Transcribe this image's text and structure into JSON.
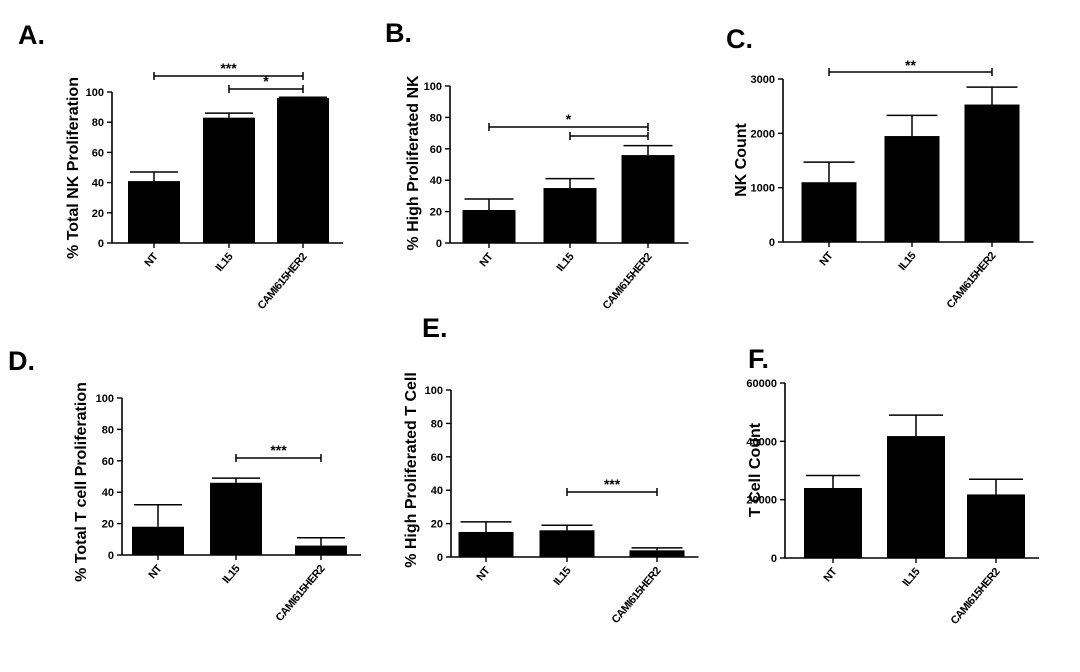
{
  "chart_data": [
    {
      "panel": "A.",
      "type": "bar",
      "categories": [
        "NT",
        "IL15",
        "CAMI615HER2"
      ],
      "values": [
        41,
        83,
        96
      ],
      "errors": [
        6,
        3,
        0.5
      ],
      "ylabel": "% Total NK Proliferation",
      "ylim": [
        0,
        100
      ],
      "yticks": [
        0,
        20,
        40,
        60,
        80,
        100
      ],
      "significance": [
        {
          "from": 0,
          "to": 2,
          "label": "***"
        },
        {
          "from": 1,
          "to": 2,
          "label": "*"
        }
      ]
    },
    {
      "panel": "B.",
      "type": "bar",
      "categories": [
        "NT",
        "IL15",
        "CAMI615HER2"
      ],
      "values": [
        21,
        35,
        56
      ],
      "errors": [
        7,
        6,
        6
      ],
      "ylabel": "% High Proliferated NK",
      "ylim": [
        0,
        100
      ],
      "yticks": [
        0,
        20,
        40,
        60,
        80,
        100
      ],
      "significance": [
        {
          "from": 0,
          "to": 2,
          "label": "*"
        },
        {
          "from": 1,
          "to": 2,
          "label": ""
        }
      ]
    },
    {
      "panel": "C.",
      "type": "bar",
      "categories": [
        "NT",
        "IL15",
        "CAMI615HER2"
      ],
      "values": [
        1100,
        1950,
        2530
      ],
      "errors": [
        370,
        380,
        320
      ],
      "ylabel": "NK Count",
      "ylim": [
        0,
        3000
      ],
      "yticks": [
        0,
        1000,
        2000,
        3000
      ],
      "significance": [
        {
          "from": 0,
          "to": 2,
          "label": "**"
        }
      ]
    },
    {
      "panel": "D.",
      "type": "bar",
      "categories": [
        "NT",
        "IL15",
        "CAMI615HER2"
      ],
      "values": [
        18,
        46,
        6
      ],
      "errors": [
        14,
        3,
        5
      ],
      "ylabel": "% Total T cell Proliferation",
      "ylim": [
        0,
        100
      ],
      "yticks": [
        0,
        20,
        40,
        60,
        80,
        100
      ],
      "significance": [
        {
          "from": 1,
          "to": 2,
          "label": "***"
        }
      ]
    },
    {
      "panel": "E.",
      "type": "bar",
      "categories": [
        "NT",
        "IL15",
        "CAMI615HER2"
      ],
      "values": [
        15,
        16,
        4
      ],
      "errors": [
        6,
        3,
        1.5
      ],
      "ylabel": "% High Proliferated T Cell",
      "ylim": [
        0,
        100
      ],
      "yticks": [
        0,
        20,
        40,
        60,
        80,
        100
      ],
      "significance": [
        {
          "from": 1,
          "to": 2,
          "label": "***"
        }
      ]
    },
    {
      "panel": "F.",
      "type": "bar",
      "categories": [
        "NT",
        "IL15",
        "CAMI615HER2"
      ],
      "values": [
        24000,
        41800,
        21800
      ],
      "errors": [
        4300,
        7200,
        5200
      ],
      "ylabel": "T Cell Count",
      "ylim": [
        0,
        60000
      ],
      "yticks": [
        0,
        20000,
        40000,
        60000
      ],
      "significance": []
    }
  ]
}
